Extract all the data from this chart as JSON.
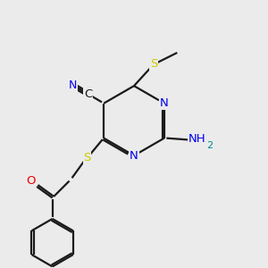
{
  "bg_color": "#ebebeb",
  "bond_color": "#1a1a1a",
  "colors": {
    "N": "#0000ee",
    "S": "#cccc00",
    "O": "#ee0000",
    "C_text": "#1a1a1a",
    "NH2_H": "#008888"
  },
  "lw": 1.6,
  "fs": 9.5
}
